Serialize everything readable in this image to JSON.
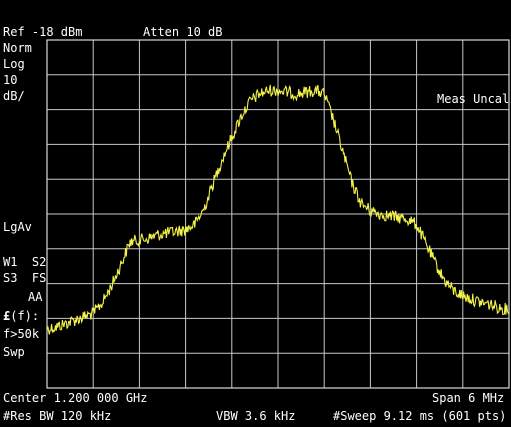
{
  "header": {
    "ref_level": "Ref -18 dBm",
    "attenuation": "Atten 10 dB"
  },
  "left_panel": {
    "detector": "Norm",
    "scale_type": "Log",
    "scale_value": "10",
    "scale_unit": "dB/",
    "average": "LgAv",
    "trace_line1": "W1  S2",
    "trace_line2": "S3  FS",
    "trace_line3": "AA",
    "correction_symbol": "£",
    "correction_suffix": "(f):",
    "correction_range": "f>50k",
    "sweep": "Swp"
  },
  "annotation": {
    "meas_status": "Meas Uncal"
  },
  "footer": {
    "center": "Center 1.200 000 GHz",
    "span": "Span 6 MHz",
    "res_bw": "#Res BW 120 kHz",
    "vbw": "VBW 3.6 kHz",
    "sweep": "#Sweep 9.12 ms (601 pts)"
  },
  "colors": {
    "background": "#000000",
    "grid": "#c8c8c8",
    "trace": "#f2f24a",
    "text": "#ffffff"
  },
  "trace": {
    "grid_divisions_x": 10,
    "grid_divisions_y": 10,
    "level_points_db_below_top": [
      [
        0.0,
        8.3
      ],
      [
        0.02,
        8.25
      ],
      [
        0.04,
        8.15
      ],
      [
        0.06,
        8.05
      ],
      [
        0.08,
        7.95
      ],
      [
        0.1,
        7.85
      ],
      [
        0.12,
        7.55
      ],
      [
        0.14,
        7.05
      ],
      [
        0.16,
        6.45
      ],
      [
        0.18,
        5.8
      ],
      [
        0.2,
        5.75
      ],
      [
        0.22,
        5.7
      ],
      [
        0.24,
        5.6
      ],
      [
        0.26,
        5.55
      ],
      [
        0.28,
        5.5
      ],
      [
        0.3,
        5.45
      ],
      [
        0.32,
        5.3
      ],
      [
        0.34,
        4.85
      ],
      [
        0.36,
        4.1
      ],
      [
        0.38,
        3.4
      ],
      [
        0.4,
        2.8
      ],
      [
        0.42,
        2.2
      ],
      [
        0.44,
        1.75
      ],
      [
        0.46,
        1.55
      ],
      [
        0.48,
        1.45
      ],
      [
        0.5,
        1.45
      ],
      [
        0.52,
        1.5
      ],
      [
        0.54,
        1.55
      ],
      [
        0.56,
        1.5
      ],
      [
        0.58,
        1.45
      ],
      [
        0.6,
        1.55
      ],
      [
        0.62,
        2.3
      ],
      [
        0.64,
        3.2
      ],
      [
        0.66,
        4.1
      ],
      [
        0.68,
        4.7
      ],
      [
        0.7,
        4.9
      ],
      [
        0.72,
        5.0
      ],
      [
        0.74,
        5.05
      ],
      [
        0.76,
        5.1
      ],
      [
        0.78,
        5.15
      ],
      [
        0.8,
        5.3
      ],
      [
        0.82,
        5.85
      ],
      [
        0.84,
        6.4
      ],
      [
        0.86,
        6.9
      ],
      [
        0.88,
        7.2
      ],
      [
        0.9,
        7.35
      ],
      [
        0.92,
        7.45
      ],
      [
        0.94,
        7.55
      ],
      [
        0.96,
        7.6
      ],
      [
        0.98,
        7.7
      ],
      [
        1.0,
        7.75
      ]
    ]
  }
}
